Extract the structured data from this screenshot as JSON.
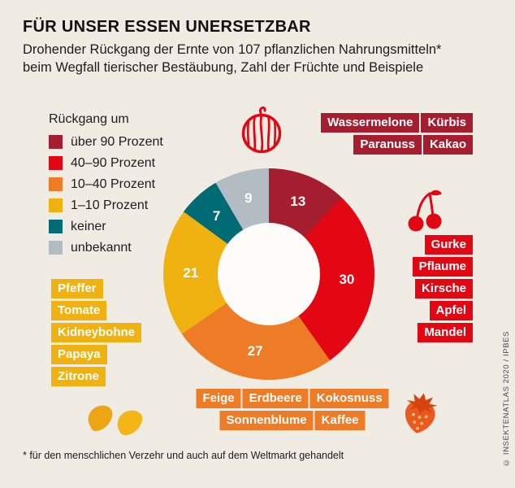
{
  "page": {
    "title": "FÜR UNSER ESSEN UNERSETZBAR",
    "subtitle_line1": "Drohender Rückgang der Ernte von 107 pflanzlichen Nahrungsmitteln*",
    "subtitle_line2": "beim Wegfall tierischer Bestäubung, Zahl der Früchte und Beispiele",
    "footnote": "* für den menschlichen Verzehr und auch auf dem Weltmarkt gehandelt",
    "credit": "© INSEKTENATLAS 2020 / IPBES"
  },
  "palette": {
    "background": "#f0ebe3",
    "dark_red": "#a51e2f",
    "red": "#e30613",
    "orange": "#ee7b25",
    "yellow": "#f0b211",
    "teal": "#006b74",
    "gray": "#b2bcc2",
    "hole": "#fdfcf9"
  },
  "legend": {
    "title": "Rückgang um",
    "items": [
      {
        "label": "über 90 Prozent",
        "color": "#a51e2f"
      },
      {
        "label": "40–90 Prozent",
        "color": "#e30613"
      },
      {
        "label": "10–40 Prozent",
        "color": "#ee7b25"
      },
      {
        "label": "1–10 Prozent",
        "color": "#f0b211"
      },
      {
        "label": "keiner",
        "color": "#006b74"
      },
      {
        "label": "unbekannt",
        "color": "#b2bcc2"
      }
    ]
  },
  "chart_data": {
    "type": "pie",
    "donut": true,
    "title": "Drohender Rückgang der Ernte von 107 pflanzlichen Nahrungsmitteln beim Wegfall tierischer Bestäubung",
    "total": 107,
    "start_angle_deg": 0,
    "direction": "clockwise",
    "segments": [
      {
        "label": "über 90 Prozent",
        "value": 13,
        "color": "#a51e2f",
        "examples": [
          "Wassermelone",
          "Kürbis",
          "Paranuss",
          "Kakao"
        ]
      },
      {
        "label": "40–90 Prozent",
        "value": 30,
        "color": "#e30613",
        "examples": [
          "Gurke",
          "Pflaume",
          "Kirsche",
          "Apfel",
          "Mandel"
        ]
      },
      {
        "label": "10–40 Prozent",
        "value": 27,
        "color": "#ee7b25",
        "examples": [
          "Feige",
          "Erdbeere",
          "Kokosnuss",
          "Sonnenblume",
          "Kaffee"
        ]
      },
      {
        "label": "1–10 Prozent",
        "value": 21,
        "color": "#f0b211",
        "examples": [
          "Pfeffer",
          "Tomate",
          "Kidneybohne",
          "Papaya",
          "Zitrone"
        ]
      },
      {
        "label": "keiner",
        "value": 7,
        "color": "#006b74",
        "examples": []
      },
      {
        "label": "unbekannt",
        "value": 9,
        "color": "#b2bcc2",
        "examples": []
      }
    ]
  },
  "icons": {
    "top": "watermelon-icon",
    "right": "cherries-icon",
    "bottom_right": "strawberry-icon",
    "bottom_left": "beans-icon"
  }
}
